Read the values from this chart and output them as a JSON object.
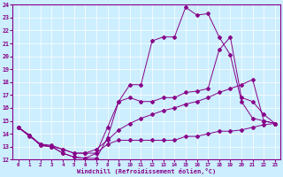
{
  "xlabel": "Windchill (Refroidissement éolien,°C)",
  "bg_color": "#cceeff",
  "line_color": "#880088",
  "xmin": 0,
  "xmax": 23,
  "ymin": 12,
  "ymax": 24,
  "line1_x": [
    0,
    1,
    2,
    3,
    4,
    5,
    6,
    7,
    8,
    9,
    10,
    11,
    12,
    13,
    14,
    15,
    16,
    17,
    18,
    19,
    20,
    21,
    22,
    23
  ],
  "line1_y": [
    14.5,
    13.9,
    13.1,
    13.0,
    12.5,
    12.2,
    12.1,
    12.1,
    13.7,
    16.5,
    17.8,
    17.8,
    21.2,
    21.5,
    21.5,
    23.8,
    23.2,
    23.3,
    21.5,
    20.1,
    16.5,
    15.2,
    15.0,
    14.8
  ],
  "line2_x": [
    0,
    1,
    2,
    3,
    4,
    5,
    6,
    7,
    8,
    9,
    10,
    11,
    12,
    13,
    14,
    15,
    16,
    17,
    18,
    19,
    20,
    21,
    22,
    23
  ],
  "line2_y": [
    14.5,
    13.9,
    13.1,
    13.0,
    12.5,
    12.2,
    12.1,
    12.5,
    14.5,
    16.5,
    16.8,
    16.5,
    16.5,
    16.8,
    16.8,
    17.2,
    17.3,
    17.5,
    20.5,
    21.5,
    16.8,
    16.5,
    15.5,
    14.8
  ],
  "line3_x": [
    0,
    1,
    2,
    3,
    4,
    5,
    6,
    7,
    8,
    9,
    10,
    11,
    12,
    13,
    14,
    15,
    16,
    17,
    18,
    19,
    20,
    21,
    22,
    23
  ],
  "line3_y": [
    14.5,
    13.8,
    13.2,
    13.0,
    12.8,
    12.5,
    12.5,
    12.8,
    13.5,
    14.3,
    14.8,
    15.2,
    15.5,
    15.8,
    16.0,
    16.3,
    16.5,
    16.8,
    17.2,
    17.5,
    17.8,
    18.2,
    15.0,
    14.8
  ],
  "line4_x": [
    0,
    1,
    2,
    3,
    4,
    5,
    6,
    7,
    8,
    9,
    10,
    11,
    12,
    13,
    14,
    15,
    16,
    17,
    18,
    19,
    20,
    21,
    22,
    23
  ],
  "line4_y": [
    14.5,
    13.9,
    13.2,
    13.1,
    12.8,
    12.5,
    12.5,
    12.5,
    13.2,
    13.5,
    13.5,
    13.5,
    13.5,
    13.5,
    13.5,
    13.8,
    13.8,
    14.0,
    14.2,
    14.2,
    14.3,
    14.5,
    14.7,
    14.8
  ]
}
